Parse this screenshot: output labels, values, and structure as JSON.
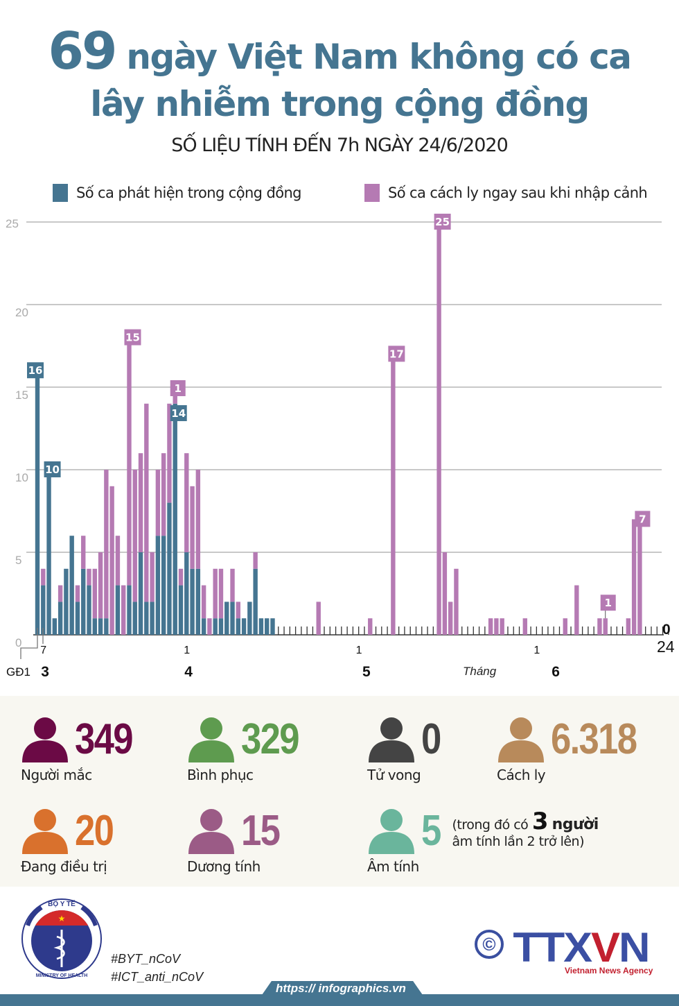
{
  "header": {
    "title_number": "69",
    "title_line1": "ngày Việt Nam không có ca",
    "title_line2": "lây nhiễm trong cộng đồng",
    "subtitle": "SỐ LIỆU TÍNH ĐẾN 7h NGÀY 24/6/2020"
  },
  "legend": [
    {
      "label": "Số ca phát hiện trong cộng đồng",
      "color": "#457591"
    },
    {
      "label": "Số ca cách ly ngay sau khi nhập cảnh",
      "color": "#b57ab3"
    }
  ],
  "chart_data": {
    "type": "bar",
    "stacked": true,
    "title": "69 ngày Việt Nam không có ca lây nhiễm trong cộng đồng",
    "xlabel": "Tháng",
    "ylabel": "",
    "ylim": [
      0,
      25
    ],
    "yticks": [
      0,
      5,
      10,
      15,
      20,
      25
    ],
    "grid": true,
    "legend_position": "top",
    "x_start": "2020-03-06",
    "x_end": "2020-06-24",
    "x_day_count": 111,
    "x_tick_labels": [
      {
        "day_index": 1,
        "label": "7"
      },
      {
        "day_index": 26,
        "label": "1"
      },
      {
        "day_index": 56,
        "label": "1"
      },
      {
        "day_index": 87,
        "label": "1"
      },
      {
        "day_index": 110,
        "label": "24"
      }
    ],
    "month_labels": [
      {
        "day_index": 1,
        "label": "3"
      },
      {
        "day_index": 26,
        "label": "4"
      },
      {
        "day_index": 57,
        "label": "5"
      },
      {
        "day_index": 90,
        "label": "6"
      }
    ],
    "axis_caption": "Tháng",
    "phase_label": "GĐ1",
    "end_value_label": "0",
    "series": [
      {
        "name": "Số ca phát hiện trong cộng đồng",
        "color": "#457591",
        "points": [
          [
            0,
            16
          ],
          [
            1,
            3
          ],
          [
            2,
            10
          ],
          [
            3,
            1
          ],
          [
            4,
            2
          ],
          [
            5,
            4
          ],
          [
            6,
            6
          ],
          [
            7,
            2
          ],
          [
            8,
            4
          ],
          [
            9,
            3
          ],
          [
            10,
            1
          ],
          [
            11,
            1
          ],
          [
            12,
            1
          ],
          [
            14,
            3
          ],
          [
            16,
            3
          ],
          [
            17,
            2
          ],
          [
            18,
            5
          ],
          [
            19,
            2
          ],
          [
            20,
            2
          ],
          [
            21,
            6
          ],
          [
            22,
            6
          ],
          [
            23,
            8
          ],
          [
            24,
            14
          ],
          [
            25,
            3
          ],
          [
            26,
            5
          ],
          [
            27,
            4
          ],
          [
            28,
            4
          ],
          [
            29,
            1
          ],
          [
            31,
            1
          ],
          [
            32,
            1
          ],
          [
            33,
            2
          ],
          [
            34,
            2
          ],
          [
            35,
            1
          ],
          [
            36,
            1
          ],
          [
            37,
            2
          ],
          [
            38,
            4
          ],
          [
            39,
            1
          ],
          [
            40,
            1
          ],
          [
            41,
            1
          ]
        ]
      },
      {
        "name": "Số ca cách ly ngay sau khi nhập cảnh",
        "color": "#b57ab3",
        "points": [
          [
            1,
            1
          ],
          [
            4,
            1
          ],
          [
            7,
            1
          ],
          [
            8,
            2
          ],
          [
            9,
            1
          ],
          [
            10,
            3
          ],
          [
            11,
            4
          ],
          [
            12,
            9
          ],
          [
            13,
            9
          ],
          [
            14,
            3
          ],
          [
            15,
            3
          ],
          [
            16,
            15
          ],
          [
            17,
            8
          ],
          [
            18,
            6
          ],
          [
            19,
            12
          ],
          [
            20,
            3
          ],
          [
            21,
            4
          ],
          [
            22,
            5
          ],
          [
            23,
            6
          ],
          [
            24,
            1
          ],
          [
            25,
            1
          ],
          [
            26,
            6
          ],
          [
            27,
            5
          ],
          [
            28,
            6
          ],
          [
            29,
            2
          ],
          [
            30,
            1
          ],
          [
            31,
            3
          ],
          [
            32,
            3
          ],
          [
            34,
            2
          ],
          [
            35,
            1
          ],
          [
            38,
            1
          ],
          [
            49,
            2
          ],
          [
            58,
            1
          ],
          [
            62,
            17
          ],
          [
            70,
            25
          ],
          [
            71,
            5
          ],
          [
            72,
            2
          ],
          [
            73,
            4
          ],
          [
            79,
            1
          ],
          [
            80,
            1
          ],
          [
            81,
            1
          ],
          [
            85,
            1
          ],
          [
            92,
            1
          ],
          [
            94,
            3
          ],
          [
            98,
            1
          ],
          [
            99,
            1
          ],
          [
            103,
            1
          ],
          [
            104,
            7
          ],
          [
            105,
            7
          ]
        ]
      }
    ],
    "data_labels": [
      {
        "day_index": 0,
        "series": 0,
        "text": "16"
      },
      {
        "day_index": 2,
        "series": 0,
        "text": "10"
      },
      {
        "day_index": 16,
        "series": 1,
        "text": "15"
      },
      {
        "day_index": 24,
        "series": 1,
        "text": "1"
      },
      {
        "day_index": 24,
        "series": 0,
        "text": "14"
      },
      {
        "day_index": 62,
        "series": 1,
        "text": "17"
      },
      {
        "day_index": 70,
        "series": 1,
        "text": "25"
      },
      {
        "day_index": 99,
        "series": 1,
        "text": "1"
      },
      {
        "day_index": 105,
        "series": 1,
        "text": "7"
      }
    ]
  },
  "stats": [
    {
      "value": "349",
      "label": "Người mắc",
      "color": "#6b0a45"
    },
    {
      "value": "329",
      "label": "Bình phục",
      "color": "#5e9b4f"
    },
    {
      "value": "0",
      "label": "Tử vong",
      "color": "#444444"
    },
    {
      "value": "6.318",
      "label": "Cách ly",
      "color": "#b88a5b"
    },
    {
      "value": "20",
      "label": "Đang điều trị",
      "color": "#d9712d"
    },
    {
      "value": "15",
      "label": "Dương tính",
      "color": "#9b5b86"
    },
    {
      "value": "5",
      "label": "Âm tính",
      "color": "#6ab59c"
    }
  ],
  "negative_note": {
    "pre": "(trong đó có",
    "number": "3",
    "unit": "người",
    "line2": "âm tính lần 2 trở lên)"
  },
  "footer": {
    "ministry_top": "BỘ Y TẾ",
    "ministry_bottom": "MINISTRY OF HEALTH",
    "hashtag1": "#BYT_nCoV",
    "hashtag2": "#ICT_anti_nCoV",
    "url": "https:// infographics.vn",
    "copyright_symbol": "©",
    "brand_a": "TTX",
    "brand_v": "V",
    "brand_n": "N",
    "agency": "Vietnam News Agency"
  }
}
